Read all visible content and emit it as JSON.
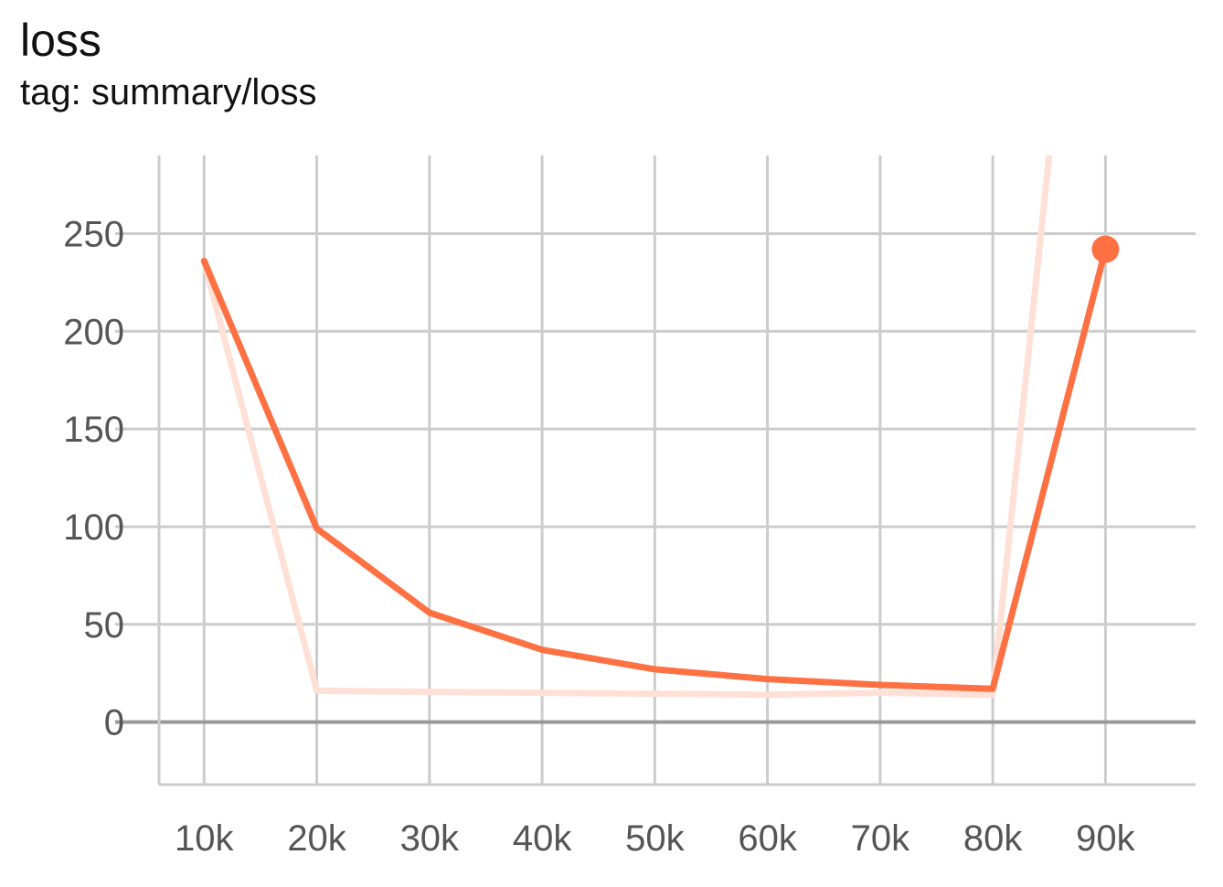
{
  "header": {
    "title": "loss",
    "subtitle": "tag: summary/loss"
  },
  "chart_data": {
    "type": "line",
    "title": "loss",
    "subtitle": "tag: summary/loss",
    "xlabel": "",
    "ylabel": "",
    "x_ticks": [
      "10k",
      "20k",
      "30k",
      "40k",
      "50k",
      "60k",
      "70k",
      "80k",
      "90k"
    ],
    "y_ticks": [
      "0",
      "50",
      "100",
      "150",
      "200",
      "250"
    ],
    "xlim": [
      6000,
      98000
    ],
    "ylim": [
      -32,
      290
    ],
    "grid": true,
    "legend": "none",
    "series": [
      {
        "role": "raw",
        "color": "#ffe0d6",
        "x": [
          10000,
          20000,
          30000,
          40000,
          50000,
          60000,
          70000,
          80000,
          85000
        ],
        "y": [
          236,
          16,
          15.5,
          15,
          14.5,
          14,
          15,
          14,
          290
        ]
      },
      {
        "role": "smoothed",
        "color": "#ff7043",
        "x": [
          10000,
          20000,
          30000,
          40000,
          50000,
          60000,
          70000,
          80000,
          90000
        ],
        "y": [
          236,
          99,
          56,
          37,
          27,
          22,
          19,
          17,
          242
        ],
        "last_point_marker": true
      }
    ]
  }
}
